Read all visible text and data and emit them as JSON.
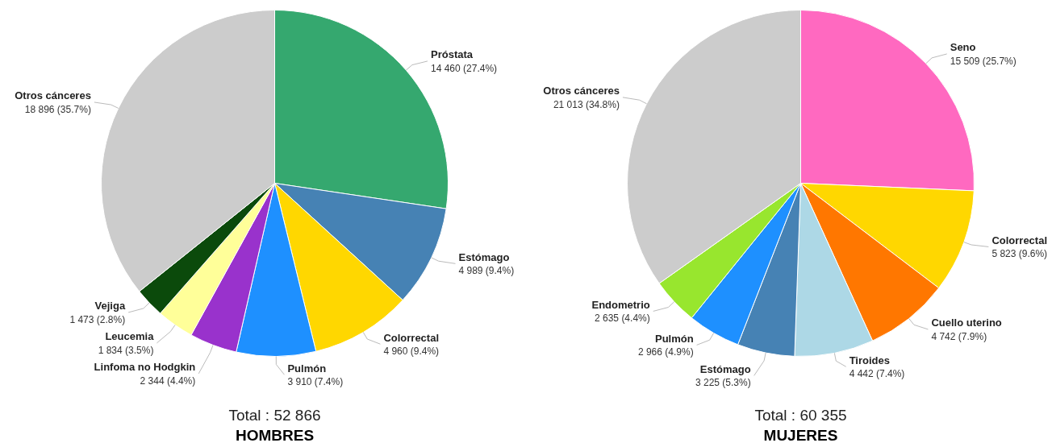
{
  "chart_data": [
    {
      "type": "pie",
      "title": "HOMBRES",
      "subtitle": "Total : 52 866",
      "categories": [
        "Próstata",
        "Estómago",
        "Colorrectal",
        "Pulmón",
        "Linfoma no Hodgkin",
        "Leucemia",
        "Vejiga",
        "Otros cánceres"
      ],
      "values": [
        14460,
        4989,
        4960,
        3910,
        2344,
        1834,
        1473,
        18896
      ],
      "colors": [
        "#35a86f",
        "#4682b4",
        "#ffd700",
        "#1e90ff",
        "#9932cc",
        "#ffff99",
        "#0b4a0b",
        "#cccccc"
      ],
      "value_labels": [
        "14 460 (27.4%)",
        "4 989 (9.4%)",
        "4 960 (9.4%)",
        "3 910 (7.4%)",
        "2 344 (4.4%)",
        "1 834 (3.5%)",
        "1 473 (2.8%)",
        "18 896 (35.7%)"
      ]
    },
    {
      "type": "pie",
      "title": "MUJERES",
      "subtitle": "Total : 60 355",
      "categories": [
        "Seno",
        "Colorrectal",
        "Cuello uterino",
        "Tiroides",
        "Estómago",
        "Pulmón",
        "Endometrio",
        "Otros cánceres"
      ],
      "values": [
        15509,
        5823,
        4742,
        4442,
        3225,
        2966,
        2635,
        21013
      ],
      "colors": [
        "#ff69c0",
        "#ffd700",
        "#ff7700",
        "#add8e6",
        "#4682b4",
        "#1e90ff",
        "#98e62e",
        "#cccccc"
      ],
      "value_labels": [
        "15 509 (25.7%)",
        "5 823 (9.6%)",
        "4 742 (7.9%)",
        "4 442 (7.4%)",
        "3 225 (5.3%)",
        "2 966 (4.9%)",
        "2 635 (4.4%)",
        "21 013 (34.8%)"
      ]
    }
  ]
}
